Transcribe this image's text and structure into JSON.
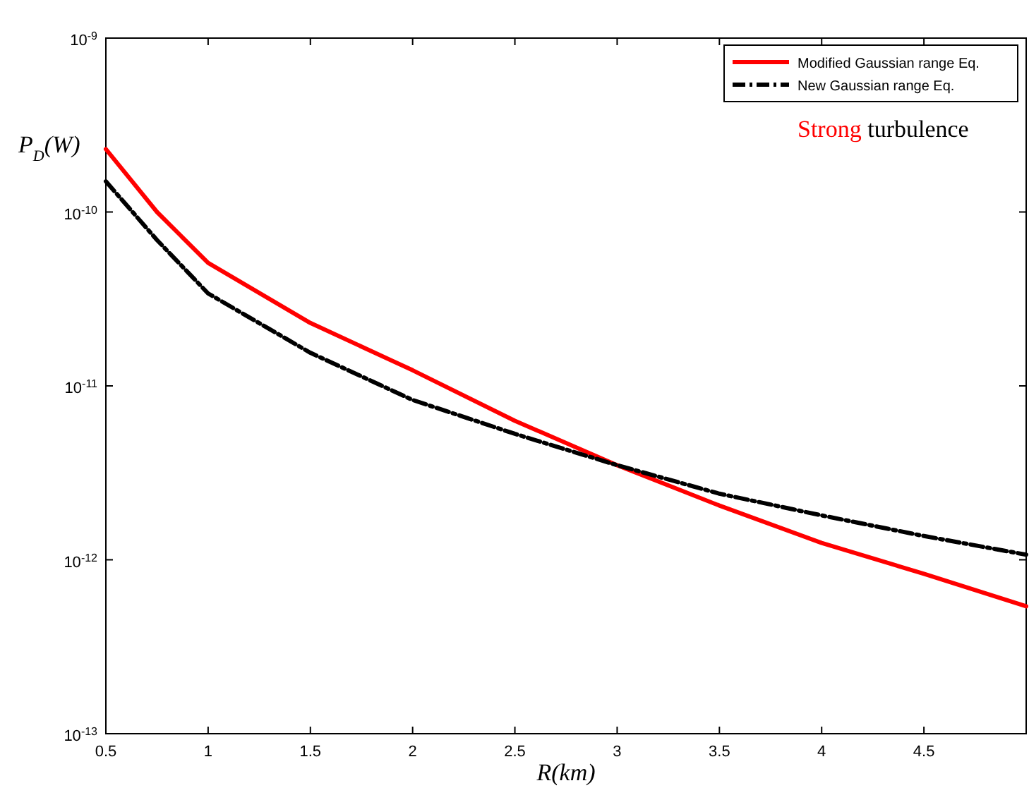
{
  "chart_data": {
    "type": "line",
    "xlabel": "R(km)",
    "ylabel": "P$_{D}$(W)",
    "log": "y",
    "xlim": [
      0.5,
      5
    ],
    "xticks": [
      0.5,
      1,
      1.5,
      2,
      2.5,
      3,
      3.5,
      4,
      4.5
    ],
    "ylim": [
      1e-13,
      1e-09
    ],
    "yticks": [
      {
        "value": 1e-13,
        "label": "10$^{-13}$"
      },
      {
        "value": 1e-12,
        "label": "10$^{-12}$"
      },
      {
        "value": 1e-11,
        "label": "10$^{-11}$"
      },
      {
        "value": 1e-10,
        "label": "10$^{-10}$"
      },
      {
        "value": 1e-09,
        "label": "10$^{-9}$"
      }
    ],
    "grid": false,
    "legend": "top right",
    "annotations": [
      "Strong turbulence"
    ],
    "x": [
      0.5,
      0.75,
      1,
      1.5,
      2,
      2.5,
      3,
      3.5,
      4,
      4.5,
      5
    ],
    "series": [
      {
        "name": "Modified Gaussian range Eq.",
        "color": "#ff0000",
        "line_style": "solid",
        "values": [
          2.3e-10,
          1e-10,
          5.1e-11,
          2.3e-11,
          1.23e-11,
          6.3e-12,
          3.5e-12,
          2.05e-12,
          1.25e-12,
          8.3e-13,
          5.4e-13
        ]
      },
      {
        "name": "New Gaussian range Eq.",
        "color": "#000000",
        "line_style": "dashed",
        "values": [
          1.5e-10,
          6.9e-11,
          3.4e-11,
          1.55e-11,
          8.3e-12,
          5.3e-12,
          3.5e-12,
          2.4e-12,
          1.8e-12,
          1.37e-12,
          1.07e-12
        ]
      }
    ]
  }
}
